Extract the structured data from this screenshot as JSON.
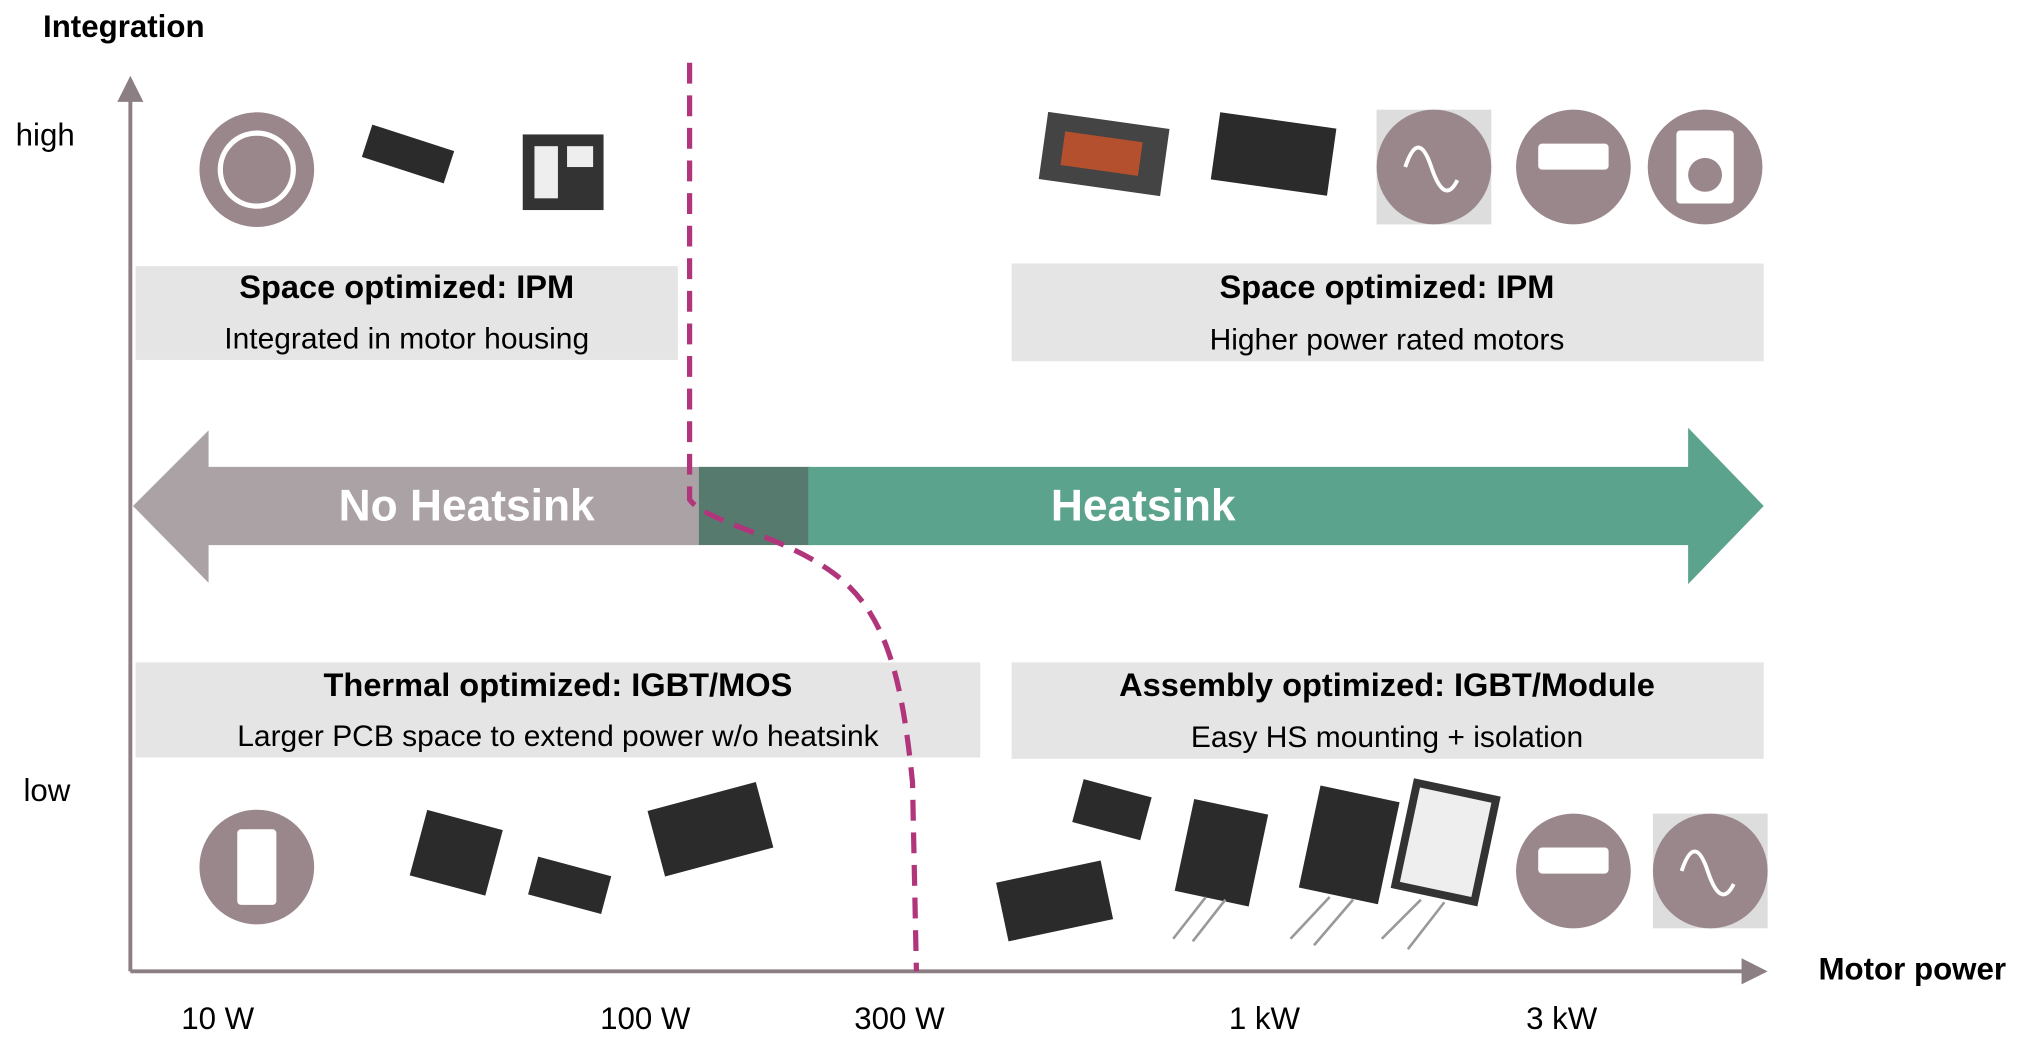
{
  "axes": {
    "y_title": "Integration",
    "x_title": "Motor power",
    "y_labels": [
      "high",
      "low"
    ],
    "x_labels": [
      "10 W",
      "100 W",
      "300 W",
      "1 kW",
      "3 kW"
    ]
  },
  "arrows": {
    "left": "No Heatsink",
    "right": "Heatsink"
  },
  "boxes": [
    {
      "title": "Space optimized: IPM",
      "subtitle": "Integrated in motor housing"
    },
    {
      "title": "Space optimized: IPM",
      "subtitle": "Higher power rated motors"
    },
    {
      "title": "Thermal optimized: IGBT/MOS",
      "subtitle": "Larger PCB space to extend power w/o heatsink"
    },
    {
      "title": "Assembly optimized: IGBT/Module",
      "subtitle": "Easy HS mounting + isolation"
    }
  ]
}
